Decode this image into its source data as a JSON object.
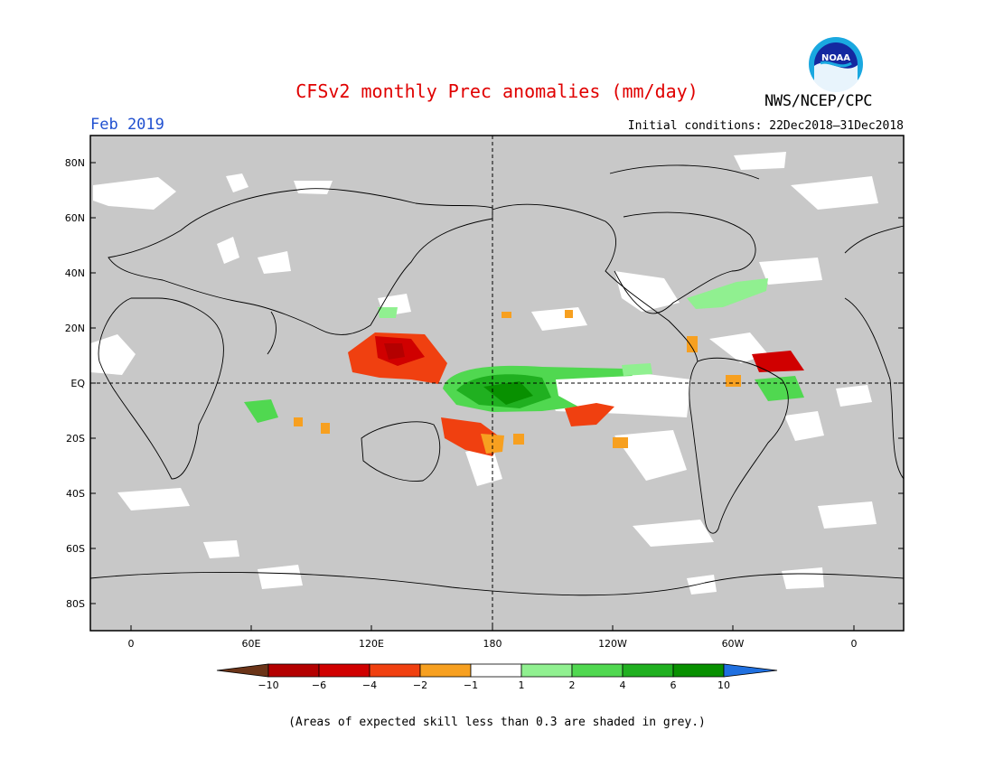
{
  "title": "CFSv2 monthly Prec anomalies (mm/day)",
  "agency": "NWS/NCEP/CPC",
  "logo_text": "NOAA",
  "valid_month": "Feb 2019",
  "initial_conditions": "Initial conditions: 22Dec2018–31Dec2018",
  "footnote": "(Areas of expected skill less than 0.3 are shaded in grey.)",
  "map": {
    "lat_labels": [
      "80N",
      "60N",
      "40N",
      "20N",
      "EQ",
      "20S",
      "40S",
      "60S",
      "80S"
    ],
    "lon_labels": [
      "0",
      "60E",
      "120E",
      "180",
      "120W",
      "60W",
      "0"
    ],
    "grey_shade_color": "#c8c8c8",
    "coast_color": "#000000"
  },
  "colorbar": {
    "labels": [
      "−10",
      "−6",
      "−4",
      "−2",
      "−1",
      "1",
      "2",
      "4",
      "6",
      "10"
    ],
    "colors": [
      "#6b3418",
      "#b40000",
      "#d00000",
      "#f04010",
      "#f7a020",
      "#ffffff",
      "#90f090",
      "#50d850",
      "#20b020",
      "#089000",
      "#2070e0"
    ]
  }
}
